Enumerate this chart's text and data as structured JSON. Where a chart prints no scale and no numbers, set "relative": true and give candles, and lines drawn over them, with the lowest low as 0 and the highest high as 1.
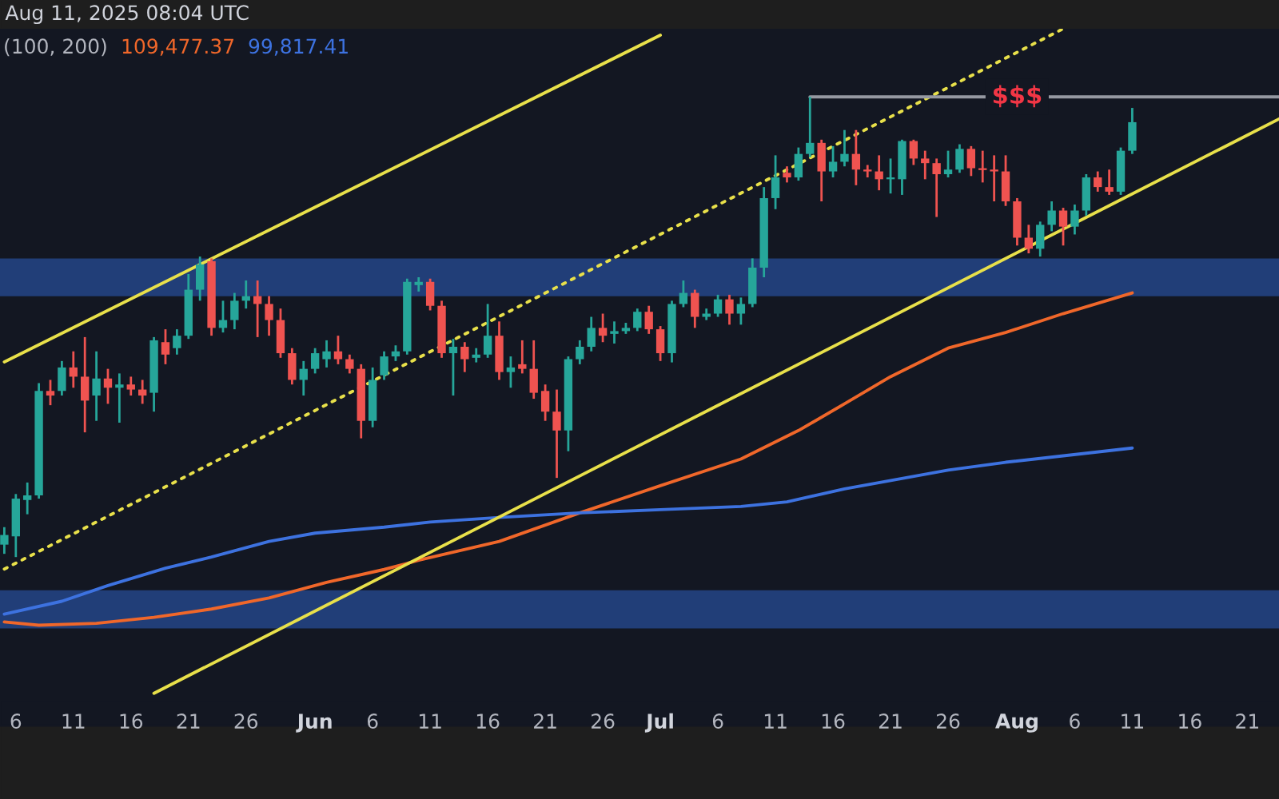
{
  "chart_data": {
    "type": "candlestick",
    "relative": true,
    "tick_labels": "x",
    "grid": false,
    "legend": "top left",
    "annotations": [
      "Aug 11, 2025 08:04 UTC",
      "(100, 200)",
      {
        "text": "$$$",
        "x": "2025-08-01",
        "y": 1.0
      }
    ],
    "xlim": [
      "2025-05-04T15:00",
      "2025-08-23T18:00"
    ],
    "xticks": [
      {
        "value": "2025-05-06",
        "label": "6"
      },
      {
        "value": "2025-05-11",
        "label": "11"
      },
      {
        "value": "2025-05-16",
        "label": "16"
      },
      {
        "value": "2025-05-21",
        "label": "21"
      },
      {
        "value": "2025-05-26",
        "label": "26"
      },
      {
        "value": "2025-06-01",
        "label": "Jun"
      },
      {
        "value": "2025-06-06",
        "label": "6"
      },
      {
        "value": "2025-06-11",
        "label": "11"
      },
      {
        "value": "2025-06-16",
        "label": "16"
      },
      {
        "value": "2025-06-21",
        "label": "21"
      },
      {
        "value": "2025-06-26",
        "label": "26"
      },
      {
        "value": "2025-07-01",
        "label": "Jul"
      },
      {
        "value": "2025-07-06",
        "label": "6"
      },
      {
        "value": "2025-07-11",
        "label": "11"
      },
      {
        "value": "2025-07-16",
        "label": "16"
      },
      {
        "value": "2025-07-21",
        "label": "21"
      },
      {
        "value": "2025-07-26",
        "label": "26"
      },
      {
        "value": "2025-08-01",
        "label": "Aug"
      },
      {
        "value": "2025-08-06",
        "label": "6"
      },
      {
        "value": "2025-08-11",
        "label": "11"
      },
      {
        "value": "2025-08-16",
        "label": "16"
      },
      {
        "value": "2025-08-21",
        "label": "21"
      }
    ],
    "x": [
      "2025-05-05",
      "2025-05-06",
      "2025-05-07",
      "2025-05-08",
      "2025-05-09",
      "2025-05-10",
      "2025-05-11",
      "2025-05-12",
      "2025-05-13",
      "2025-05-14",
      "2025-05-15",
      "2025-05-16",
      "2025-05-17",
      "2025-05-18",
      "2025-05-19",
      "2025-05-20",
      "2025-05-21",
      "2025-05-22",
      "2025-05-23",
      "2025-05-24",
      "2025-05-25",
      "2025-05-26",
      "2025-05-27",
      "2025-05-28",
      "2025-05-29",
      "2025-05-30",
      "2025-05-31",
      "2025-06-01",
      "2025-06-02",
      "2025-06-03",
      "2025-06-04",
      "2025-06-05",
      "2025-06-06",
      "2025-06-07",
      "2025-06-08",
      "2025-06-09",
      "2025-06-10",
      "2025-06-11",
      "2025-06-12",
      "2025-06-13",
      "2025-06-14",
      "2025-06-15",
      "2025-06-16",
      "2025-06-17",
      "2025-06-18",
      "2025-06-19",
      "2025-06-20",
      "2025-06-21",
      "2025-06-22",
      "2025-06-23",
      "2025-06-24",
      "2025-06-25",
      "2025-06-26",
      "2025-06-27",
      "2025-06-28",
      "2025-06-29",
      "2025-06-30",
      "2025-07-01",
      "2025-07-02",
      "2025-07-03",
      "2025-07-04",
      "2025-07-05",
      "2025-07-06",
      "2025-07-07",
      "2025-07-08",
      "2025-07-09",
      "2025-07-10",
      "2025-07-11",
      "2025-07-12",
      "2025-07-13",
      "2025-07-14",
      "2025-07-15",
      "2025-07-16",
      "2025-07-17",
      "2025-07-18",
      "2025-07-19",
      "2025-07-20",
      "2025-07-21",
      "2025-07-22",
      "2025-07-23",
      "2025-07-24",
      "2025-07-25",
      "2025-07-26",
      "2025-07-27",
      "2025-07-28",
      "2025-07-29",
      "2025-07-30",
      "2025-07-31",
      "2025-08-01",
      "2025-08-02",
      "2025-08-03",
      "2025-08-04",
      "2025-08-05",
      "2025-08-06",
      "2025-08-07",
      "2025-08-08",
      "2025-08-09",
      "2025-08-10",
      "2025-08-11"
    ],
    "ohlc": [
      [
        0.027,
        0.065,
        0.007,
        0.048
      ],
      [
        0.045,
        0.137,
        0,
        0.127
      ],
      [
        0.124,
        0.162,
        0.093,
        0.134
      ],
      [
        0.134,
        0.378,
        0.127,
        0.361
      ],
      [
        0.361,
        0.385,
        0.33,
        0.351
      ],
      [
        0.361,
        0.426,
        0.351,
        0.412
      ],
      [
        0.412,
        0.447,
        0.368,
        0.392
      ],
      [
        0.392,
        0.478,
        0.271,
        0.34
      ],
      [
        0.351,
        0.447,
        0.296,
        0.388
      ],
      [
        0.388,
        0.409,
        0.333,
        0.368
      ],
      [
        0.368,
        0.399,
        0.292,
        0.375
      ],
      [
        0.375,
        0.392,
        0.351,
        0.364
      ],
      [
        0.364,
        0.385,
        0.333,
        0.351
      ],
      [
        0.357,
        0.478,
        0.316,
        0.471
      ],
      [
        0.467,
        0.495,
        0.419,
        0.44
      ],
      [
        0.454,
        0.495,
        0.44,
        0.481
      ],
      [
        0.481,
        0.615,
        0.474,
        0.581
      ],
      [
        0.581,
        0.653,
        0.557,
        0.636
      ],
      [
        0.643,
        0.649,
        0.481,
        0.498
      ],
      [
        0.498,
        0.557,
        0.488,
        0.515
      ],
      [
        0.515,
        0.574,
        0.495,
        0.557
      ],
      [
        0.557,
        0.601,
        0.54,
        0.567
      ],
      [
        0.567,
        0.601,
        0.478,
        0.55
      ],
      [
        0.55,
        0.567,
        0.481,
        0.515
      ],
      [
        0.515,
        0.54,
        0.433,
        0.443
      ],
      [
        0.443,
        0.454,
        0.375,
        0.385
      ],
      [
        0.385,
        0.426,
        0.351,
        0.409
      ],
      [
        0.409,
        0.454,
        0.399,
        0.443
      ],
      [
        0.43,
        0.471,
        0.412,
        0.447
      ],
      [
        0.447,
        0.481,
        0.419,
        0.43
      ],
      [
        0.43,
        0.44,
        0.399,
        0.409
      ],
      [
        0.409,
        0.419,
        0.258,
        0.296
      ],
      [
        0.296,
        0.412,
        0.282,
        0.385
      ],
      [
        0.395,
        0.447,
        0.385,
        0.436
      ],
      [
        0.436,
        0.46,
        0.426,
        0.447
      ],
      [
        0.447,
        0.605,
        0.44,
        0.598
      ],
      [
        0.591,
        0.608,
        0.577,
        0.598
      ],
      [
        0.598,
        0.605,
        0.536,
        0.546
      ],
      [
        0.546,
        0.557,
        0.433,
        0.443
      ],
      [
        0.443,
        0.474,
        0.351,
        0.457
      ],
      [
        0.457,
        0.467,
        0.402,
        0.43
      ],
      [
        0.433,
        0.454,
        0.423,
        0.44
      ],
      [
        0.44,
        0.55,
        0.433,
        0.481
      ],
      [
        0.481,
        0.512,
        0.385,
        0.402
      ],
      [
        0.402,
        0.436,
        0.368,
        0.412
      ],
      [
        0.419,
        0.471,
        0.399,
        0.409
      ],
      [
        0.409,
        0.471,
        0.344,
        0.357
      ],
      [
        0.361,
        0.375,
        0.296,
        0.316
      ],
      [
        0.316,
        0.364,
        0.172,
        0.275
      ],
      [
        0.275,
        0.436,
        0.23,
        0.43
      ],
      [
        0.43,
        0.471,
        0.419,
        0.457
      ],
      [
        0.457,
        0.522,
        0.447,
        0.498
      ],
      [
        0.498,
        0.529,
        0.467,
        0.481
      ],
      [
        0.485,
        0.512,
        0.464,
        0.491
      ],
      [
        0.491,
        0.509,
        0.485,
        0.498
      ],
      [
        0.498,
        0.54,
        0.491,
        0.533
      ],
      [
        0.533,
        0.546,
        0.485,
        0.495
      ],
      [
        0.495,
        0.502,
        0.426,
        0.443
      ],
      [
        0.443,
        0.557,
        0.423,
        0.55
      ],
      [
        0.55,
        0.601,
        0.543,
        0.574
      ],
      [
        0.574,
        0.581,
        0.498,
        0.522
      ],
      [
        0.522,
        0.54,
        0.515,
        0.529
      ],
      [
        0.529,
        0.57,
        0.522,
        0.56
      ],
      [
        0.56,
        0.57,
        0.505,
        0.529
      ],
      [
        0.529,
        0.564,
        0.505,
        0.55
      ],
      [
        0.55,
        0.649,
        0.543,
        0.629
      ],
      [
        0.629,
        0.804,
        0.608,
        0.78
      ],
      [
        0.78,
        0.873,
        0.756,
        0.825
      ],
      [
        0.835,
        0.849,
        0.814,
        0.825
      ],
      [
        0.825,
        0.89,
        0.818,
        0.876
      ],
      [
        0.876,
        1.0,
        0.869,
        0.9
      ],
      [
        0.9,
        0.907,
        0.773,
        0.838
      ],
      [
        0.838,
        0.893,
        0.825,
        0.859
      ],
      [
        0.859,
        0.928,
        0.849,
        0.876
      ],
      [
        0.876,
        0.928,
        0.808,
        0.842
      ],
      [
        0.842,
        0.852,
        0.825,
        0.838
      ],
      [
        0.838,
        0.873,
        0.797,
        0.821
      ],
      [
        0.821,
        0.866,
        0.79,
        0.825
      ],
      [
        0.821,
        0.907,
        0.787,
        0.904
      ],
      [
        0.904,
        0.907,
        0.852,
        0.866
      ],
      [
        0.866,
        0.883,
        0.821,
        0.856
      ],
      [
        0.856,
        0.866,
        0.739,
        0.832
      ],
      [
        0.832,
        0.883,
        0.825,
        0.842
      ],
      [
        0.842,
        0.897,
        0.835,
        0.887
      ],
      [
        0.887,
        0.893,
        0.828,
        0.845
      ],
      [
        0.845,
        0.883,
        0.814,
        0.842
      ],
      [
        0.842,
        0.873,
        0.773,
        0.838
      ],
      [
        0.838,
        0.873,
        0.763,
        0.773
      ],
      [
        0.773,
        0.78,
        0.677,
        0.694
      ],
      [
        0.694,
        0.722,
        0.66,
        0.67
      ],
      [
        0.67,
        0.729,
        0.653,
        0.722
      ],
      [
        0.722,
        0.773,
        0.708,
        0.753
      ],
      [
        0.753,
        0.759,
        0.677,
        0.718
      ],
      [
        0.718,
        0.766,
        0.701,
        0.753
      ],
      [
        0.753,
        0.832,
        0.742,
        0.825
      ],
      [
        0.825,
        0.838,
        0.794,
        0.804
      ],
      [
        0.804,
        0.842,
        0.787,
        0.794
      ],
      [
        0.794,
        0.89,
        0.787,
        0.883
      ],
      [
        0.883,
        0.976,
        0.876,
        0.945
      ]
    ],
    "colors": [
      "#26a69a",
      "#26a69a",
      "#26a69a",
      "#26a69a",
      "#ef5350",
      "#26a69a",
      "#ef5350",
      "#ef5350",
      "#26a69a",
      "#ef5350",
      "#26a69a",
      "#ef5350",
      "#ef5350",
      "#26a69a",
      "#ef5350",
      "#26a69a",
      "#26a69a",
      "#26a69a",
      "#ef5350",
      "#26a69a",
      "#26a69a",
      "#26a69a",
      "#ef5350",
      "#ef5350",
      "#ef5350",
      "#ef5350",
      "#26a69a",
      "#26a69a",
      "#26a69a",
      "#ef5350",
      "#ef5350",
      "#ef5350",
      "#26a69a",
      "#26a69a",
      "#26a69a",
      "#26a69a",
      "#26a69a",
      "#ef5350",
      "#ef5350",
      "#26a69a",
      "#ef5350",
      "#26a69a",
      "#26a69a",
      "#ef5350",
      "#26a69a",
      "#ef5350",
      "#ef5350",
      "#ef5350",
      "#ef5350",
      "#26a69a",
      "#26a69a",
      "#26a69a",
      "#ef5350",
      "#26a69a",
      "#26a69a",
      "#26a69a",
      "#ef5350",
      "#ef5350",
      "#26a69a",
      "#26a69a",
      "#ef5350",
      "#26a69a",
      "#26a69a",
      "#ef5350",
      "#26a69a",
      "#26a69a",
      "#26a69a",
      "#26a69a",
      "#ef5350",
      "#26a69a",
      "#26a69a",
      "#ef5350",
      "#26a69a",
      "#26a69a",
      "#ef5350",
      "#ef5350",
      "#ef5350",
      "#26a69a",
      "#26a69a",
      "#ef5350",
      "#ef5350",
      "#ef5350",
      "#26a69a",
      "#26a69a",
      "#ef5350",
      "#ef5350",
      "#ef5350",
      "#ef5350",
      "#ef5350",
      "#ef5350",
      "#26a69a",
      "#26a69a",
      "#ef5350",
      "#26a69a",
      "#26a69a",
      "#ef5350",
      "#ef5350",
      "#26a69a",
      "#26a69a"
    ],
    "bands": [
      {
        "axis": "y",
        "from": 0.567,
        "to": 0.649,
        "color": "#213e78"
      },
      {
        "axis": "y",
        "from": -0.155,
        "to": -0.072,
        "color": "#213e78"
      }
    ],
    "series": [
      {
        "type": "line",
        "name": "109,477.37",
        "color": "#f0672a",
        "x": [
          "2025-05-05",
          "2025-05-08",
          "2025-05-13",
          "2025-05-18",
          "2025-05-23",
          "2025-05-28",
          "2025-06-02",
          "2025-06-07",
          "2025-06-10",
          "2025-06-17",
          "2025-06-24",
          "2025-07-01",
          "2025-07-08",
          "2025-07-13",
          "2025-07-17",
          "2025-07-21",
          "2025-07-26",
          "2025-07-31",
          "2025-08-05",
          "2025-08-11"
        ],
        "values": [
          -0.141,
          -0.148,
          -0.144,
          -0.131,
          -0.113,
          -0.089,
          -0.055,
          -0.027,
          -0.007,
          0.034,
          0.096,
          0.155,
          0.213,
          0.275,
          0.333,
          0.392,
          0.454,
          0.488,
          0.529,
          0.574
        ]
      },
      {
        "type": "line",
        "name": "99,817.41",
        "color": "#3d72e0",
        "x": [
          "2025-05-05",
          "2025-05-10",
          "2025-05-14",
          "2025-05-19",
          "2025-05-23",
          "2025-05-28",
          "2025-06-01",
          "2025-06-07",
          "2025-06-11",
          "2025-06-17",
          "2025-06-24",
          "2025-07-01",
          "2025-07-08",
          "2025-07-12",
          "2025-07-17",
          "2025-07-26",
          "2025-07-31",
          "2025-08-05",
          "2025-08-11"
        ],
        "values": [
          -0.124,
          -0.096,
          -0.062,
          -0.024,
          0,
          0.034,
          0.052,
          0.065,
          0.076,
          0.086,
          0.096,
          0.103,
          0.11,
          0.12,
          0.148,
          0.189,
          0.206,
          0.22,
          0.237
        ]
      },
      {
        "type": "line",
        "color": "#e8e04a",
        "line_style": "solid",
        "x": [
          "2025-05-05",
          "2025-07-01"
        ],
        "values": [
          0.424,
          1.134
        ]
      },
      {
        "type": "line",
        "color": "#e8e04a",
        "line_style": "solid",
        "x": [
          "2025-05-18",
          "2025-08-23T18:00"
        ],
        "values": [
          -0.296,
          0.952
        ]
      },
      {
        "type": "line",
        "color": "#e8e04a",
        "line_style": "dotted",
        "x": [
          "2025-05-05",
          "2025-08-05"
        ],
        "values": [
          -0.026,
          1.148
        ]
      },
      {
        "type": "line",
        "color": "#9598a1",
        "line_style": "solid",
        "x": [
          "2025-07-14",
          "2025-08-23T18:00"
        ],
        "values": [
          1.0,
          1.0
        ]
      }
    ]
  }
}
